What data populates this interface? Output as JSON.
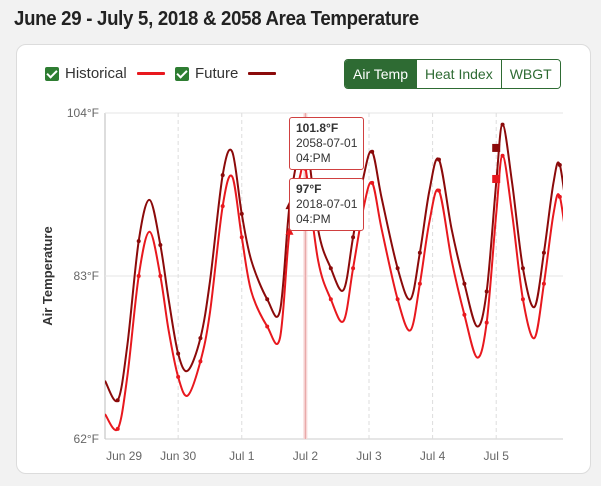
{
  "page": {
    "title": "June 29 - July 5, 2018 & 2058 Area Temperature"
  },
  "legend": {
    "historical_label": "Historical",
    "future_label": "Future"
  },
  "toggle": {
    "options": [
      "Air Temp",
      "Heat Index",
      "WBGT"
    ],
    "active": "Air Temp"
  },
  "tooltips": [
    {
      "value": "101.8°F",
      "date": "2058-07-01",
      "time": "04:PM"
    },
    {
      "value": "97°F",
      "date": "2018-07-01",
      "time": "04:PM"
    }
  ],
  "colors": {
    "historical": "#e8181e",
    "future": "#8b0a0a",
    "accent": "#2e6b33",
    "crosshair": "#f0b8b8"
  },
  "chart_data": {
    "type": "line",
    "ylabel": "Air Temperature",
    "ylim": [
      62,
      104
    ],
    "yticks": [
      "62°F",
      "83°F",
      "104°F"
    ],
    "xlim": [
      -0.15,
      7.05
    ],
    "xticks": [
      {
        "label": "Jun 29",
        "x": 0.15
      },
      {
        "label": "Jun 30",
        "x": 1.0
      },
      {
        "label": "Jul 1",
        "x": 2.0
      },
      {
        "label": "Jul 2",
        "x": 3.0
      },
      {
        "label": "Jul 3",
        "x": 4.0
      },
      {
        "label": "Jul 4",
        "x": 5.0
      },
      {
        "label": "Jul 5",
        "x": 6.0
      }
    ],
    "grid": true,
    "series": [
      {
        "name": "Historical",
        "points": [
          [
            -0.15,
            65.2
          ],
          [
            0.05,
            63.3
          ],
          [
            0.2,
            70
          ],
          [
            0.38,
            83
          ],
          [
            0.55,
            88.7
          ],
          [
            0.72,
            83
          ],
          [
            0.85,
            76
          ],
          [
            1.0,
            70
          ],
          [
            1.15,
            67.6
          ],
          [
            1.35,
            72
          ],
          [
            1.5,
            78.3
          ],
          [
            1.7,
            92
          ],
          [
            1.85,
            95.8
          ],
          [
            2.0,
            88
          ],
          [
            2.15,
            81
          ],
          [
            2.4,
            76.5
          ],
          [
            2.6,
            75
          ],
          [
            2.75,
            88.7
          ],
          [
            2.92,
            96
          ],
          [
            3.0,
            97
          ],
          [
            3.2,
            85
          ],
          [
            3.4,
            80
          ],
          [
            3.6,
            77.2
          ],
          [
            3.75,
            84
          ],
          [
            3.92,
            92
          ],
          [
            4.05,
            95
          ],
          [
            4.2,
            89
          ],
          [
            4.45,
            80
          ],
          [
            4.65,
            76
          ],
          [
            4.8,
            82
          ],
          [
            4.95,
            90
          ],
          [
            5.1,
            94
          ],
          [
            5.3,
            85
          ],
          [
            5.5,
            78
          ],
          [
            5.7,
            72.5
          ],
          [
            5.85,
            77
          ],
          [
            6.0,
            91
          ],
          [
            6.1,
            98.5
          ],
          [
            6.25,
            91
          ],
          [
            6.42,
            80
          ],
          [
            6.6,
            75
          ],
          [
            6.75,
            82
          ],
          [
            6.9,
            91
          ],
          [
            7.0,
            93.2
          ],
          [
            7.15,
            85
          ],
          [
            7.3,
            80
          ]
        ]
      },
      {
        "name": "Future",
        "points": [
          [
            -0.15,
            69.5
          ],
          [
            0.05,
            67
          ],
          [
            0.2,
            74
          ],
          [
            0.38,
            87.5
          ],
          [
            0.55,
            92.8
          ],
          [
            0.72,
            87
          ],
          [
            0.85,
            80
          ],
          [
            1.0,
            73
          ],
          [
            1.15,
            70.8
          ],
          [
            1.35,
            75
          ],
          [
            1.5,
            82.3
          ],
          [
            1.7,
            96
          ],
          [
            1.85,
            99
          ],
          [
            2.0,
            91
          ],
          [
            2.15,
            85
          ],
          [
            2.4,
            80
          ],
          [
            2.6,
            78.5
          ],
          [
            2.75,
            92
          ],
          [
            2.92,
            100
          ],
          [
            3.0,
            101.8
          ],
          [
            3.2,
            89
          ],
          [
            3.4,
            84
          ],
          [
            3.6,
            81.2
          ],
          [
            3.75,
            88
          ],
          [
            3.92,
            96
          ],
          [
            4.05,
            99
          ],
          [
            4.2,
            93
          ],
          [
            4.45,
            84
          ],
          [
            4.65,
            80
          ],
          [
            4.8,
            86
          ],
          [
            4.95,
            94
          ],
          [
            5.1,
            98
          ],
          [
            5.3,
            89
          ],
          [
            5.5,
            82
          ],
          [
            5.7,
            76.5
          ],
          [
            5.85,
            81
          ],
          [
            6.0,
            95
          ],
          [
            6.1,
            102.5
          ],
          [
            6.25,
            95
          ],
          [
            6.42,
            84
          ],
          [
            6.6,
            79
          ],
          [
            6.75,
            86
          ],
          [
            6.9,
            95
          ],
          [
            7.0,
            97.3
          ],
          [
            7.15,
            89
          ],
          [
            7.3,
            84
          ]
        ]
      }
    ],
    "highlight_x": 3.0
  }
}
